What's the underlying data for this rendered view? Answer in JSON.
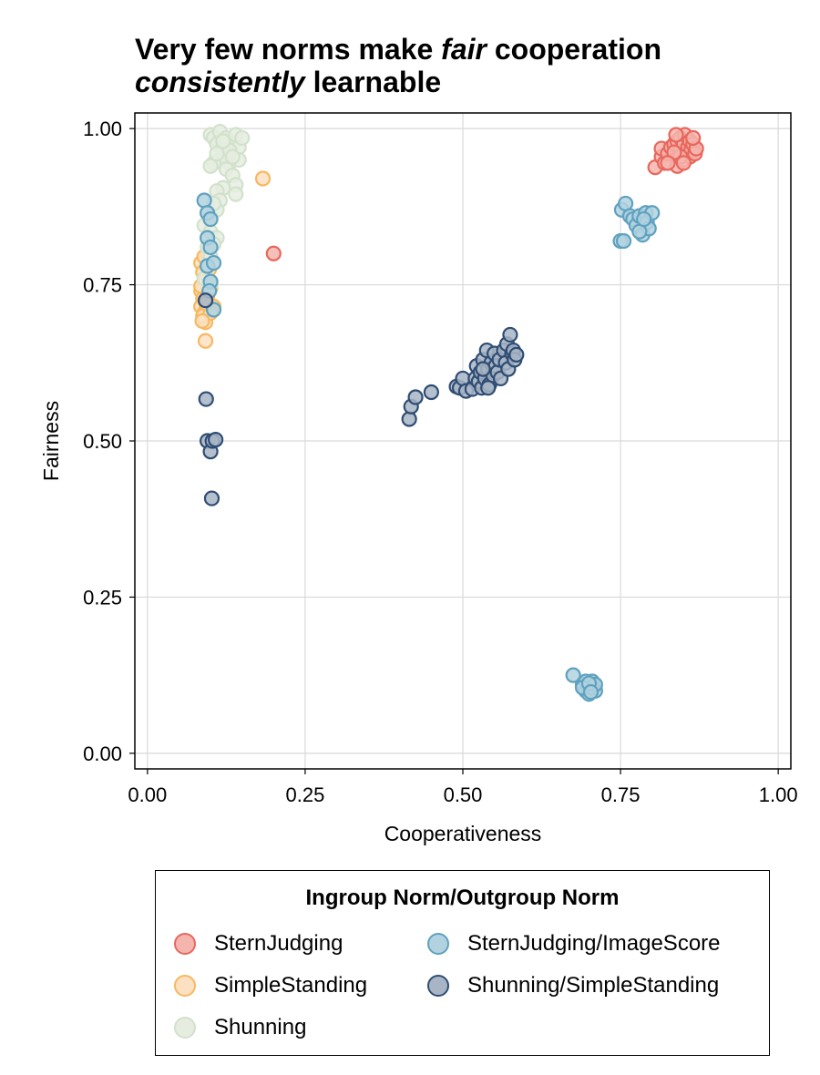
{
  "chart_data": {
    "type": "scatter",
    "title": {
      "segments": [
        {
          "text": "Very few norms make ",
          "italic": false
        },
        {
          "text": "fair",
          "italic": true
        },
        {
          "text": " cooperation",
          "italic": false
        },
        {
          "text": "\n",
          "italic": false
        },
        {
          "text": "consistently",
          "italic": true
        },
        {
          "text": " learnable",
          "italic": false
        }
      ]
    },
    "xlabel": "Cooperativeness",
    "ylabel": "Fairness",
    "xlim": [
      -0.02,
      1.02
    ],
    "ylim": [
      -0.025,
      1.025
    ],
    "xticks": [
      0.0,
      0.25,
      0.5,
      0.75,
      1.0
    ],
    "yticks": [
      0.0,
      0.25,
      0.5,
      0.75,
      1.0
    ],
    "xtick_labels": [
      "0.00",
      "0.25",
      "0.50",
      "0.75",
      "1.00"
    ],
    "ytick_labels": [
      "0.00",
      "0.25",
      "0.50",
      "0.75",
      "1.00"
    ],
    "grid": true,
    "legend": {
      "title": "Ingroup Norm/Outgroup Norm",
      "placement": "below",
      "columns": 2
    },
    "series": [
      {
        "name": "SternJudging",
        "fill": "#f4b5ae",
        "stroke": "#e8675c",
        "points": [
          [
            0.2,
            0.8
          ],
          [
            0.805,
            0.938
          ],
          [
            0.815,
            0.955
          ],
          [
            0.815,
            0.968
          ],
          [
            0.82,
            0.945
          ],
          [
            0.825,
            0.96
          ],
          [
            0.83,
            0.97
          ],
          [
            0.835,
            0.975
          ],
          [
            0.84,
            0.98
          ],
          [
            0.84,
            0.94
          ],
          [
            0.845,
            0.965
          ],
          [
            0.845,
            0.985
          ],
          [
            0.85,
            0.95
          ],
          [
            0.85,
            0.975
          ],
          [
            0.852,
            0.99
          ],
          [
            0.855,
            0.96
          ],
          [
            0.857,
            0.97
          ],
          [
            0.86,
            0.98
          ],
          [
            0.86,
            0.955
          ],
          [
            0.862,
            0.965
          ],
          [
            0.865,
            0.975
          ],
          [
            0.868,
            0.96
          ],
          [
            0.87,
            0.968
          ],
          [
            0.845,
            0.955
          ],
          [
            0.835,
            0.962
          ],
          [
            0.825,
            0.945
          ],
          [
            0.85,
            0.945
          ],
          [
            0.865,
            0.985
          ],
          [
            0.838,
            0.99
          ]
        ]
      },
      {
        "name": "SimpleStanding",
        "fill": "#fce0c2",
        "stroke": "#f8b85f",
        "points": [
          [
            0.085,
            0.785
          ],
          [
            0.088,
            0.77
          ],
          [
            0.09,
            0.755
          ],
          [
            0.085,
            0.74
          ],
          [
            0.088,
            0.728
          ],
          [
            0.085,
            0.715
          ],
          [
            0.09,
            0.705
          ],
          [
            0.092,
            0.69
          ],
          [
            0.088,
            0.7
          ],
          [
            0.095,
            0.73
          ],
          [
            0.1,
            0.745
          ],
          [
            0.098,
            0.775
          ],
          [
            0.105,
            0.715
          ],
          [
            0.1,
            0.705
          ],
          [
            0.092,
            0.66
          ],
          [
            0.095,
            0.8
          ],
          [
            0.09,
            0.795
          ],
          [
            0.085,
            0.748
          ],
          [
            0.093,
            0.72
          ],
          [
            0.087,
            0.692
          ],
          [
            0.183,
            0.92
          ]
        ]
      },
      {
        "name": "Shunning",
        "fill": "#e6ede0",
        "stroke": "#d2e1cc",
        "points": [
          [
            0.1,
            0.99
          ],
          [
            0.105,
            0.985
          ],
          [
            0.11,
            0.975
          ],
          [
            0.115,
            0.995
          ],
          [
            0.12,
            0.97
          ],
          [
            0.125,
            0.985
          ],
          [
            0.13,
            0.96
          ],
          [
            0.135,
            0.975
          ],
          [
            0.14,
            0.99
          ],
          [
            0.145,
            0.97
          ],
          [
            0.15,
            0.985
          ],
          [
            0.12,
            0.955
          ],
          [
            0.13,
            0.945
          ],
          [
            0.115,
            0.95
          ],
          [
            0.125,
            0.935
          ],
          [
            0.135,
            0.925
          ],
          [
            0.14,
            0.91
          ],
          [
            0.12,
            0.905
          ],
          [
            0.11,
            0.9
          ],
          [
            0.115,
            0.885
          ],
          [
            0.14,
            0.895
          ],
          [
            0.105,
            0.945
          ],
          [
            0.1,
            0.94
          ],
          [
            0.13,
            0.965
          ],
          [
            0.145,
            0.95
          ],
          [
            0.11,
            0.96
          ],
          [
            0.12,
            0.98
          ],
          [
            0.135,
            0.955
          ],
          [
            0.09,
            0.845
          ],
          [
            0.1,
            0.835
          ],
          [
            0.11,
            0.825
          ],
          [
            0.105,
            0.815
          ],
          [
            0.095,
            0.81
          ],
          [
            0.1,
            0.86
          ],
          [
            0.11,
            0.87
          ],
          [
            0.105,
            0.88
          ],
          [
            0.1,
            0.795
          ],
          [
            0.095,
            0.78
          ],
          [
            0.09,
            0.76
          ],
          [
            0.1,
            0.75
          ]
        ]
      },
      {
        "name": "SternJudging/ImageScore",
        "fill": "#b2d2df",
        "stroke": "#5fa1c0",
        "points": [
          [
            0.09,
            0.885
          ],
          [
            0.095,
            0.865
          ],
          [
            0.1,
            0.855
          ],
          [
            0.095,
            0.825
          ],
          [
            0.1,
            0.81
          ],
          [
            0.095,
            0.78
          ],
          [
            0.105,
            0.785
          ],
          [
            0.1,
            0.755
          ],
          [
            0.098,
            0.74
          ],
          [
            0.105,
            0.71
          ],
          [
            0.752,
            0.87
          ],
          [
            0.758,
            0.88
          ],
          [
            0.765,
            0.86
          ],
          [
            0.77,
            0.855
          ],
          [
            0.775,
            0.845
          ],
          [
            0.78,
            0.86
          ],
          [
            0.785,
            0.83
          ],
          [
            0.79,
            0.865
          ],
          [
            0.792,
            0.85
          ],
          [
            0.795,
            0.84
          ],
          [
            0.8,
            0.865
          ],
          [
            0.75,
            0.82
          ],
          [
            0.755,
            0.82
          ],
          [
            0.78,
            0.835
          ],
          [
            0.787,
            0.855
          ],
          [
            0.675,
            0.125
          ],
          [
            0.69,
            0.11
          ],
          [
            0.695,
            0.1
          ],
          [
            0.7,
            0.105
          ],
          [
            0.705,
            0.115
          ],
          [
            0.71,
            0.1
          ],
          [
            0.695,
            0.115
          ],
          [
            0.7,
            0.095
          ],
          [
            0.705,
            0.105
          ],
          [
            0.71,
            0.11
          ],
          [
            0.69,
            0.105
          ],
          [
            0.7,
            0.112
          ],
          [
            0.703,
            0.098
          ]
        ]
      },
      {
        "name": "Shunning/SimpleStanding",
        "fill": "#a8b5c5",
        "stroke": "#2f4d73",
        "points": [
          [
            0.093,
            0.567
          ],
          [
            0.095,
            0.5
          ],
          [
            0.1,
            0.483
          ],
          [
            0.103,
            0.5
          ],
          [
            0.108,
            0.502
          ],
          [
            0.102,
            0.408
          ],
          [
            0.092,
            0.725
          ],
          [
            0.415,
            0.535
          ],
          [
            0.418,
            0.555
          ],
          [
            0.425,
            0.57
          ],
          [
            0.45,
            0.578
          ],
          [
            0.49,
            0.587
          ],
          [
            0.495,
            0.585
          ],
          [
            0.5,
            0.6
          ],
          [
            0.505,
            0.58
          ],
          [
            0.515,
            0.583
          ],
          [
            0.52,
            0.6
          ],
          [
            0.522,
            0.62
          ],
          [
            0.525,
            0.595
          ],
          [
            0.528,
            0.61
          ],
          [
            0.53,
            0.585
          ],
          [
            0.532,
            0.63
          ],
          [
            0.535,
            0.6
          ],
          [
            0.538,
            0.645
          ],
          [
            0.54,
            0.615
          ],
          [
            0.542,
            0.59
          ],
          [
            0.545,
            0.625
          ],
          [
            0.548,
            0.605
          ],
          [
            0.55,
            0.64
          ],
          [
            0.552,
            0.62
          ],
          [
            0.555,
            0.61
          ],
          [
            0.558,
            0.63
          ],
          [
            0.56,
            0.6
          ],
          [
            0.565,
            0.645
          ],
          [
            0.568,
            0.625
          ],
          [
            0.57,
            0.655
          ],
          [
            0.572,
            0.615
          ],
          [
            0.575,
            0.67
          ],
          [
            0.578,
            0.64
          ],
          [
            0.58,
            0.645
          ],
          [
            0.582,
            0.63
          ],
          [
            0.585,
            0.638
          ],
          [
            0.532,
            0.615
          ],
          [
            0.54,
            0.585
          ]
        ]
      }
    ]
  }
}
